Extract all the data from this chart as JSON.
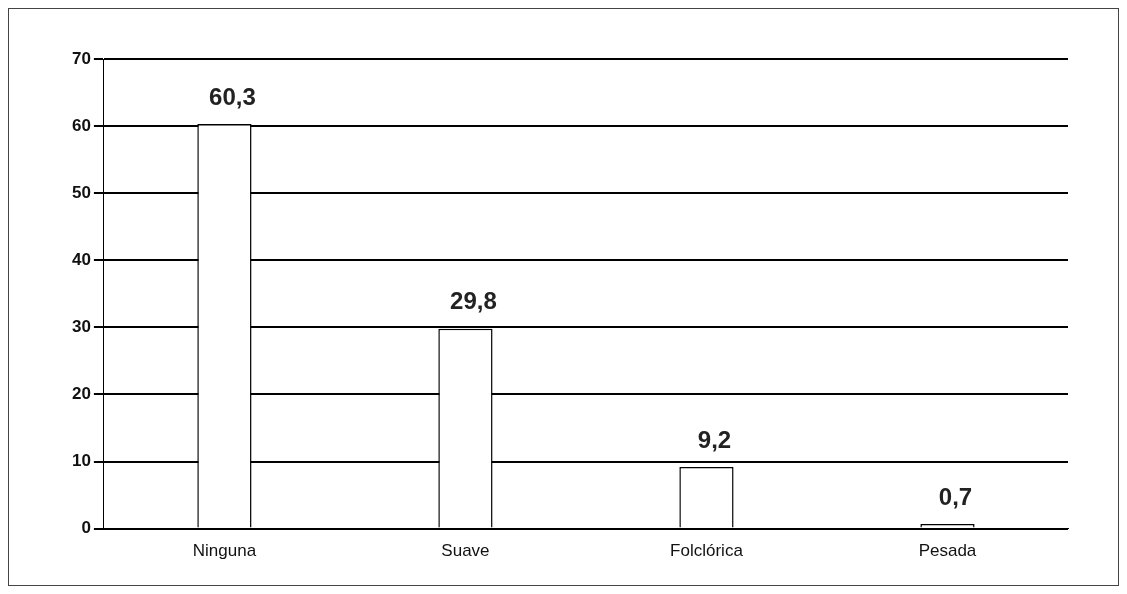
{
  "chart_data": {
    "type": "bar",
    "categories": [
      "Ninguna",
      "Suave",
      "Folclórica",
      "Pesada"
    ],
    "values": [
      60.3,
      29.8,
      9.2,
      0.7
    ],
    "value_labels": [
      "60,3",
      "29,8",
      "9,2",
      "0,7"
    ],
    "color": "#ffffff",
    "ylim": [
      0,
      70
    ],
    "yticks": [
      0,
      10,
      20,
      30,
      40,
      50,
      60,
      70
    ],
    "grid": "y",
    "legend": false
  }
}
